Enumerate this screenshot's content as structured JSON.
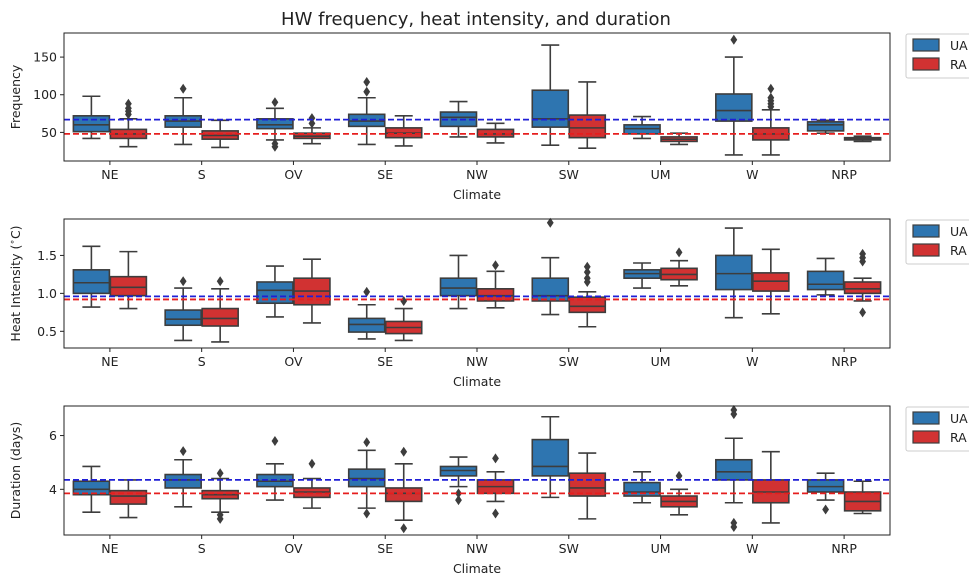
{
  "title": "HW frequency, heat intensity, and duration",
  "colors": {
    "UA": "#2e75b0",
    "RA": "#d13232",
    "ua_ref": "#1f1fd6",
    "ra_ref": "#e61e1e",
    "whisker": "#3d3d3d"
  },
  "chart_data": [
    {
      "type": "box",
      "xlabel": "Climate",
      "ylabel": "Frequency",
      "categories": [
        "NE",
        "S",
        "OV",
        "SE",
        "NW",
        "SW",
        "UM",
        "W",
        "NRP"
      ],
      "yticks": [
        "50",
        "100",
        "150"
      ],
      "ylim": [
        12,
        182
      ],
      "legend": [
        "UA",
        "RA"
      ],
      "legend_position": "right",
      "reference_lines": {
        "UA": 67,
        "RA": 48
      },
      "series": [
        {
          "name": "UA",
          "boxes": [
            {
              "lo": 42,
              "q1": 51,
              "med": 60,
              "q3": 72,
              "hi": 98,
              "outliers": []
            },
            {
              "lo": 34,
              "q1": 57,
              "med": 65,
              "q3": 72,
              "hi": 96,
              "outliers": [
                108
              ]
            },
            {
              "lo": 40,
              "q1": 55,
              "med": 60,
              "q3": 68,
              "hi": 82,
              "outliers": [
                31,
                35,
                90
              ]
            },
            {
              "lo": 34,
              "q1": 58,
              "med": 65,
              "q3": 74,
              "hi": 96,
              "outliers": [
                104,
                117
              ]
            },
            {
              "lo": 44,
              "q1": 58,
              "med": 70,
              "q3": 77,
              "hi": 91,
              "outliers": []
            },
            {
              "lo": 33,
              "q1": 57,
              "med": 68,
              "q3": 106,
              "hi": 166,
              "outliers": []
            },
            {
              "lo": 42,
              "q1": 48,
              "med": 55,
              "q3": 60,
              "hi": 71,
              "outliers": []
            },
            {
              "lo": 20,
              "q1": 65,
              "med": 79,
              "q3": 101,
              "hi": 150,
              "outliers": [
                173
              ]
            },
            {
              "lo": 49,
              "q1": 52,
              "med": 60,
              "q3": 64,
              "hi": 66,
              "outliers": []
            }
          ]
        },
        {
          "name": "RA",
          "boxes": [
            {
              "lo": 31,
              "q1": 42,
              "med": 48,
              "q3": 54,
              "hi": 68,
              "outliers": [
                74,
                78,
                82,
                88
              ]
            },
            {
              "lo": 30,
              "q1": 41,
              "med": 46,
              "q3": 52,
              "hi": 66,
              "outliers": []
            },
            {
              "lo": 35,
              "q1": 42,
              "med": 45,
              "q3": 49,
              "hi": 56,
              "outliers": [
                62,
                69
              ]
            },
            {
              "lo": 32,
              "q1": 43,
              "med": 49,
              "q3": 56,
              "hi": 72,
              "outliers": []
            },
            {
              "lo": 36,
              "q1": 44,
              "med": 48,
              "q3": 54,
              "hi": 62,
              "outliers": []
            },
            {
              "lo": 29,
              "q1": 43,
              "med": 56,
              "q3": 73,
              "hi": 117,
              "outliers": []
            },
            {
              "lo": 34,
              "q1": 38,
              "med": 41,
              "q3": 44,
              "hi": 49,
              "outliers": []
            },
            {
              "lo": 20,
              "q1": 40,
              "med": 48,
              "q3": 56,
              "hi": 80,
              "outliers": [
                84,
                88,
                92,
                96,
                108
              ]
            },
            {
              "lo": 38,
              "q1": 40,
              "med": 41,
              "q3": 43,
              "hi": 45,
              "outliers": []
            }
          ]
        }
      ]
    },
    {
      "type": "box",
      "xlabel": "Climate",
      "ylabel": "Heat Intensity ($^\\circ$C)",
      "categories": [
        "NE",
        "S",
        "OV",
        "SE",
        "NW",
        "SW",
        "UM",
        "W",
        "NRP"
      ],
      "yticks": [
        "0.5",
        "1.0",
        "1.5"
      ],
      "ylim": [
        0.28,
        1.98
      ],
      "legend": [
        "UA",
        "RA"
      ],
      "legend_position": "right",
      "reference_lines": {
        "UA": 0.96,
        "RA": 0.92
      },
      "series": [
        {
          "name": "UA",
          "boxes": [
            {
              "lo": 0.82,
              "q1": 1.0,
              "med": 1.14,
              "q3": 1.31,
              "hi": 1.62,
              "outliers": []
            },
            {
              "lo": 0.38,
              "q1": 0.58,
              "med": 0.66,
              "q3": 0.78,
              "hi": 1.07,
              "outliers": [
                1.16
              ]
            },
            {
              "lo": 0.69,
              "q1": 0.87,
              "med": 1.04,
              "q3": 1.15,
              "hi": 1.36,
              "outliers": []
            },
            {
              "lo": 0.4,
              "q1": 0.49,
              "med": 0.59,
              "q3": 0.67,
              "hi": 0.85,
              "outliers": [
                1.02
              ]
            },
            {
              "lo": 0.8,
              "q1": 0.97,
              "med": 1.07,
              "q3": 1.2,
              "hi": 1.5,
              "outliers": []
            },
            {
              "lo": 0.72,
              "q1": 0.9,
              "med": 0.97,
              "q3": 1.2,
              "hi": 1.47,
              "outliers": [
                1.93
              ]
            },
            {
              "lo": 1.07,
              "q1": 1.2,
              "med": 1.26,
              "q3": 1.31,
              "hi": 1.4,
              "outliers": []
            },
            {
              "lo": 0.68,
              "q1": 1.05,
              "med": 1.26,
              "q3": 1.5,
              "hi": 1.86,
              "outliers": []
            },
            {
              "lo": 0.98,
              "q1": 1.05,
              "med": 1.12,
              "q3": 1.29,
              "hi": 1.46,
              "outliers": []
            }
          ]
        },
        {
          "name": "RA",
          "boxes": [
            {
              "lo": 0.8,
              "q1": 0.97,
              "med": 1.08,
              "q3": 1.22,
              "hi": 1.55,
              "outliers": []
            },
            {
              "lo": 0.36,
              "q1": 0.57,
              "med": 0.67,
              "q3": 0.8,
              "hi": 1.06,
              "outliers": [
                1.16
              ]
            },
            {
              "lo": 0.61,
              "q1": 0.85,
              "med": 1.03,
              "q3": 1.2,
              "hi": 1.45,
              "outliers": []
            },
            {
              "lo": 0.38,
              "q1": 0.47,
              "med": 0.55,
              "q3": 0.63,
              "hi": 0.8,
              "outliers": [
                0.9
              ]
            },
            {
              "lo": 0.81,
              "q1": 0.9,
              "med": 0.97,
              "q3": 1.06,
              "hi": 1.29,
              "outliers": [
                1.37
              ]
            },
            {
              "lo": 0.56,
              "q1": 0.75,
              "med": 0.83,
              "q3": 0.95,
              "hi": 1.02,
              "outliers": [
                1.15,
                1.2,
                1.28,
                1.35
              ]
            },
            {
              "lo": 1.1,
              "q1": 1.18,
              "med": 1.25,
              "q3": 1.33,
              "hi": 1.43,
              "outliers": [
                1.54
              ]
            },
            {
              "lo": 0.73,
              "q1": 1.03,
              "med": 1.16,
              "q3": 1.27,
              "hi": 1.58,
              "outliers": []
            },
            {
              "lo": 0.9,
              "q1": 1.0,
              "med": 1.06,
              "q3": 1.15,
              "hi": 1.2,
              "outliers": [
                0.75,
                1.42,
                1.47,
                1.52
              ]
            }
          ]
        }
      ]
    },
    {
      "type": "box",
      "xlabel": "Climate",
      "ylabel": "Duration (days)",
      "categories": [
        "NE",
        "S",
        "OV",
        "SE",
        "NW",
        "SW",
        "UM",
        "W",
        "NRP"
      ],
      "yticks": [
        "4",
        "6"
      ],
      "ylim": [
        2.3,
        7.1
      ],
      "legend": [
        "UA",
        "RA"
      ],
      "legend_position": "right",
      "reference_lines": {
        "UA": 4.35,
        "RA": 3.85
      },
      "series": [
        {
          "name": "UA",
          "boxes": [
            {
              "lo": 3.15,
              "q1": 3.8,
              "med": 4.0,
              "q3": 4.3,
              "hi": 4.85,
              "outliers": []
            },
            {
              "lo": 3.35,
              "q1": 4.05,
              "med": 4.35,
              "q3": 4.55,
              "hi": 5.1,
              "outliers": [
                5.42
              ]
            },
            {
              "lo": 3.6,
              "q1": 4.1,
              "med": 4.3,
              "q3": 4.55,
              "hi": 4.95,
              "outliers": [
                5.8
              ]
            },
            {
              "lo": 3.3,
              "q1": 4.1,
              "med": 4.4,
              "q3": 4.75,
              "hi": 5.45,
              "outliers": [
                3.1,
                5.75
              ]
            },
            {
              "lo": 4.1,
              "q1": 4.5,
              "med": 4.7,
              "q3": 4.85,
              "hi": 5.2,
              "outliers": [
                3.6,
                3.85
              ]
            },
            {
              "lo": 3.7,
              "q1": 4.5,
              "med": 4.85,
              "q3": 5.85,
              "hi": 6.7,
              "outliers": []
            },
            {
              "lo": 3.5,
              "q1": 3.75,
              "med": 3.9,
              "q3": 4.25,
              "hi": 4.65,
              "outliers": []
            },
            {
              "lo": 3.5,
              "q1": 4.35,
              "med": 4.65,
              "q3": 5.1,
              "hi": 5.9,
              "outliers": [
                2.6,
                2.75,
                6.8,
                6.95
              ]
            },
            {
              "lo": 3.6,
              "q1": 3.9,
              "med": 4.1,
              "q3": 4.35,
              "hi": 4.6,
              "outliers": [
                3.25
              ]
            }
          ]
        },
        {
          "name": "RA",
          "boxes": [
            {
              "lo": 2.95,
              "q1": 3.45,
              "med": 3.75,
              "q3": 3.95,
              "hi": 4.35,
              "outliers": []
            },
            {
              "lo": 3.15,
              "q1": 3.65,
              "med": 3.8,
              "q3": 3.95,
              "hi": 4.4,
              "outliers": [
                2.9,
                3.05,
                4.6
              ]
            },
            {
              "lo": 3.3,
              "q1": 3.7,
              "med": 3.9,
              "q3": 4.05,
              "hi": 4.4,
              "outliers": [
                4.95
              ]
            },
            {
              "lo": 2.85,
              "q1": 3.55,
              "med": 3.85,
              "q3": 4.05,
              "hi": 4.95,
              "outliers": [
                2.55,
                5.4
              ]
            },
            {
              "lo": 3.55,
              "q1": 3.85,
              "med": 4.1,
              "q3": 4.35,
              "hi": 4.65,
              "outliers": [
                3.1,
                5.15
              ]
            },
            {
              "lo": 2.9,
              "q1": 3.75,
              "med": 4.05,
              "q3": 4.6,
              "hi": 5.35,
              "outliers": []
            },
            {
              "lo": 3.05,
              "q1": 3.35,
              "med": 3.55,
              "q3": 3.75,
              "hi": 4.0,
              "outliers": [
                4.5
              ]
            },
            {
              "lo": 2.75,
              "q1": 3.5,
              "med": 3.9,
              "q3": 4.35,
              "hi": 5.4,
              "outliers": []
            },
            {
              "lo": 3.1,
              "q1": 3.2,
              "med": 3.55,
              "q3": 3.9,
              "hi": 4.3,
              "outliers": []
            }
          ]
        }
      ]
    }
  ]
}
